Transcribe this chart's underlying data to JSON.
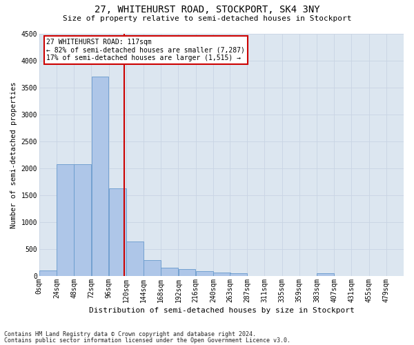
{
  "title": "27, WHITEHURST ROAD, STOCKPORT, SK4 3NY",
  "subtitle": "Size of property relative to semi-detached houses in Stockport",
  "xlabel": "Distribution of semi-detached houses by size in Stockport",
  "ylabel": "Number of semi-detached properties",
  "footnote1": "Contains HM Land Registry data © Crown copyright and database right 2024.",
  "footnote2": "Contains public sector information licensed under the Open Government Licence v3.0.",
  "annotation_title": "27 WHITEHURST ROAD: 117sqm",
  "annotation_line1": "← 82% of semi-detached houses are smaller (7,287)",
  "annotation_line2": "17% of semi-detached houses are larger (1,515) →",
  "property_size": 117,
  "bin_starts": [
    0,
    24,
    48,
    72,
    96,
    120,
    144,
    168,
    192,
    216,
    240,
    263,
    287,
    311,
    335,
    359,
    383,
    407,
    431,
    455,
    479
  ],
  "bin_width": 24,
  "bar_heights": [
    100,
    2075,
    2075,
    3700,
    1625,
    640,
    290,
    160,
    125,
    95,
    65,
    50,
    0,
    0,
    0,
    0,
    50,
    0,
    0,
    0,
    0
  ],
  "bar_color": "#aec6e8",
  "bar_edge_color": "#6699cc",
  "vline_color": "#cc0000",
  "vline_x": 117,
  "annotation_box_color": "#cc0000",
  "ylim": [
    0,
    4500
  ],
  "yticks": [
    0,
    500,
    1000,
    1500,
    2000,
    2500,
    3000,
    3500,
    4000,
    4500
  ],
  "grid_color": "#c8d4e3",
  "background_color": "#dce6f0",
  "title_fontsize": 10,
  "subtitle_fontsize": 8,
  "xlabel_fontsize": 8,
  "ylabel_fontsize": 7.5,
  "tick_fontsize": 7,
  "annotation_fontsize": 7,
  "footnote_fontsize": 6
}
